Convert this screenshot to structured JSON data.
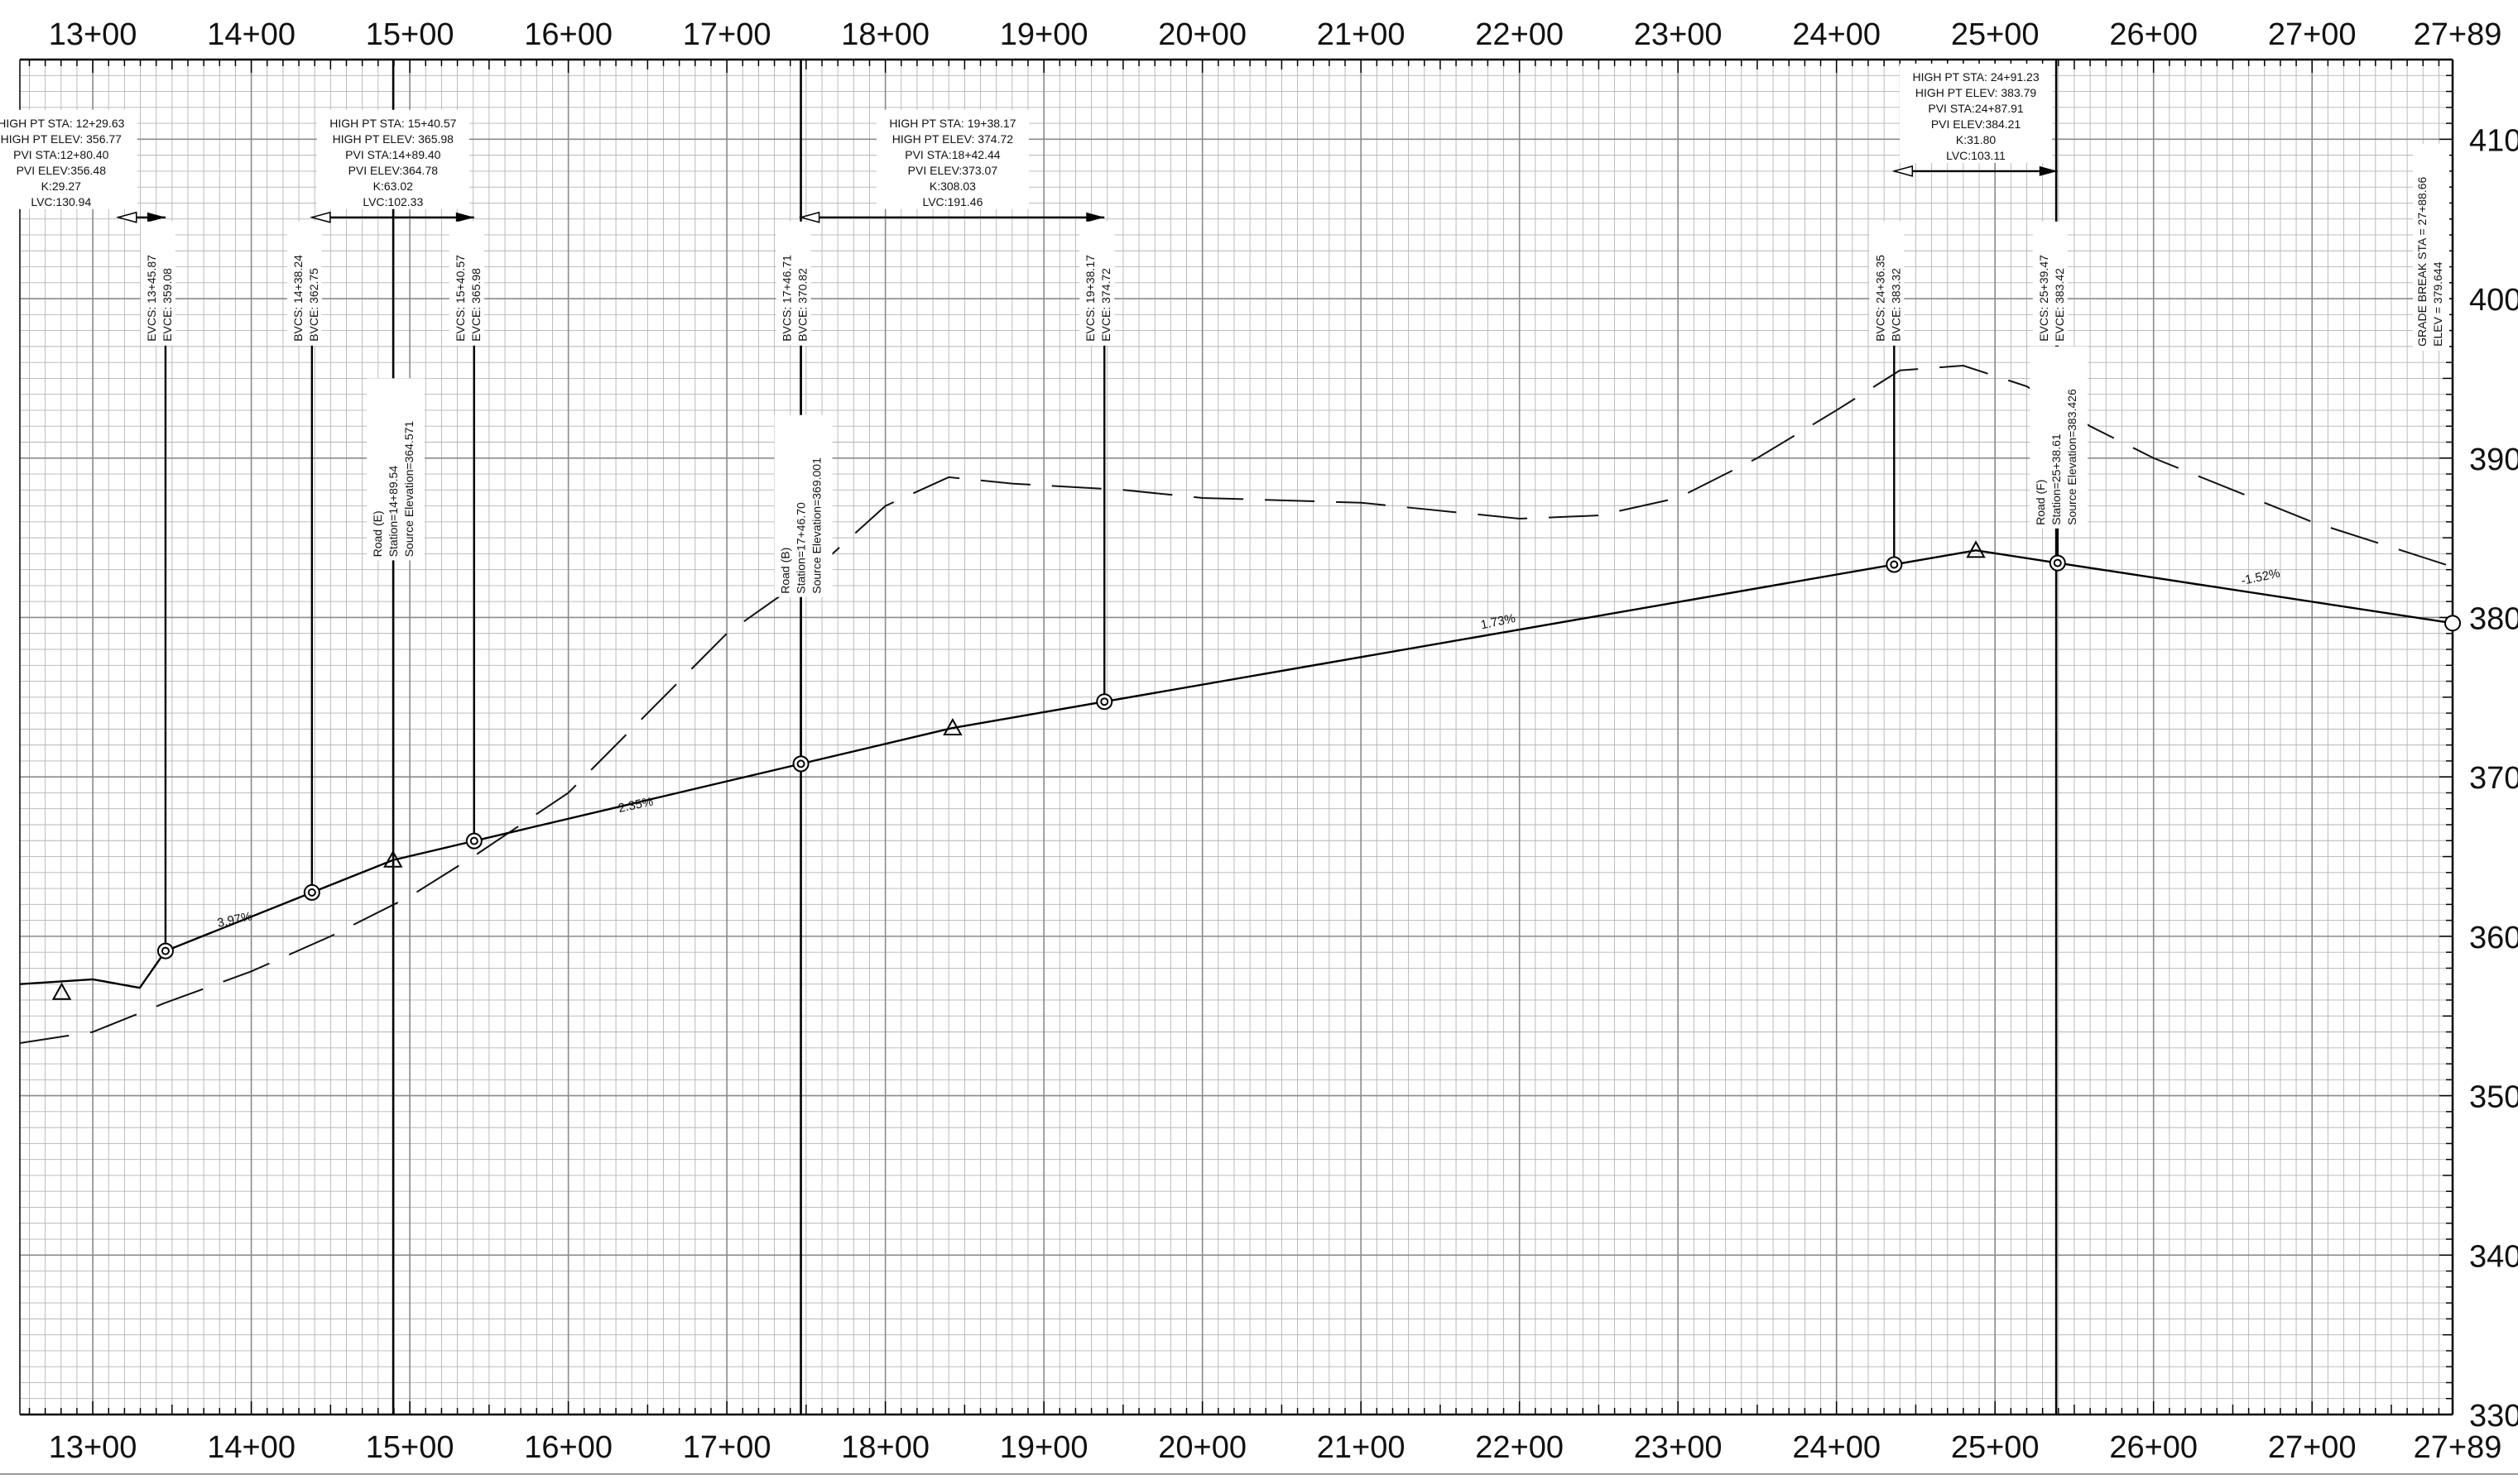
{
  "stations": [
    {
      "value": 1300,
      "label": "13+00"
    },
    {
      "value": 1400,
      "label": "14+00"
    },
    {
      "value": 1500,
      "label": "15+00"
    },
    {
      "value": 1600,
      "label": "16+00"
    },
    {
      "value": 1700,
      "label": "17+00"
    },
    {
      "value": 1800,
      "label": "18+00"
    },
    {
      "value": 1900,
      "label": "19+00"
    },
    {
      "value": 2000,
      "label": "20+00"
    },
    {
      "value": 2100,
      "label": "21+00"
    },
    {
      "value": 2200,
      "label": "22+00"
    },
    {
      "value": 2300,
      "label": "23+00"
    },
    {
      "value": 2400,
      "label": "24+00"
    },
    {
      "value": 2500,
      "label": "25+00"
    },
    {
      "value": 2600,
      "label": "26+00"
    },
    {
      "value": 2700,
      "label": "27+00"
    },
    {
      "value": 2788.66,
      "label": "27+89"
    }
  ],
  "elevations": [
    {
      "value": 410,
      "label": "410"
    },
    {
      "value": 400,
      "label": "400"
    },
    {
      "value": 390,
      "label": "390"
    },
    {
      "value": 380,
      "label": "380"
    },
    {
      "value": 370,
      "label": "370"
    },
    {
      "value": 360,
      "label": "360"
    },
    {
      "value": 350,
      "label": "350"
    },
    {
      "value": 340,
      "label": "340"
    },
    {
      "value": 330,
      "label": "330"
    }
  ],
  "chart_data": {
    "type": "line",
    "x_range": [
      1254,
      2788.66
    ],
    "y_range": [
      330,
      415
    ],
    "grid": true,
    "profile": [
      [
        1254,
        357.0
      ],
      [
        1300,
        357.3
      ],
      [
        1329.63,
        356.77
      ],
      [
        1345.87,
        359.08
      ],
      [
        1438.24,
        362.75
      ],
      [
        1489.4,
        364.78
      ],
      [
        1540.57,
        365.98
      ],
      [
        1746.71,
        370.82
      ],
      [
        1842.44,
        373.07
      ],
      [
        1938.17,
        374.72
      ],
      [
        2436.35,
        383.32
      ],
      [
        2487.91,
        384.21
      ],
      [
        2539.47,
        383.42
      ],
      [
        2788.66,
        379.644
      ]
    ],
    "existing_ground": [
      [
        1254,
        353.3
      ],
      [
        1300,
        354.0
      ],
      [
        1345,
        355.8
      ],
      [
        1400,
        357.8
      ],
      [
        1450,
        360.0
      ],
      [
        1500,
        362.5
      ],
      [
        1540,
        365.0
      ],
      [
        1600,
        369.0
      ],
      [
        1650,
        374.0
      ],
      [
        1700,
        379.0
      ],
      [
        1750,
        382.5
      ],
      [
        1800,
        387.0
      ],
      [
        1840,
        388.8
      ],
      [
        1880,
        388.4
      ],
      [
        1950,
        388.0
      ],
      [
        2000,
        387.5
      ],
      [
        2100,
        387.2
      ],
      [
        2200,
        386.2
      ],
      [
        2250,
        386.4
      ],
      [
        2300,
        387.5
      ],
      [
        2350,
        390.0
      ],
      [
        2400,
        393.0
      ],
      [
        2440,
        395.5
      ],
      [
        2480,
        395.8
      ],
      [
        2520,
        394.5
      ],
      [
        2560,
        392.0
      ],
      [
        2600,
        390.0
      ],
      [
        2650,
        388.0
      ],
      [
        2700,
        386.0
      ],
      [
        2788,
        383.2
      ]
    ],
    "grade_labels": [
      {
        "sta": 1390,
        "elev": 360.8,
        "text": "3.97%"
      },
      {
        "sta": 1643,
        "elev": 368.0,
        "text": "2.35%"
      },
      {
        "sta": 2187,
        "elev": 379.5,
        "text": "1.73%"
      },
      {
        "sta": 2668,
        "elev": 382.3,
        "text": "-1.52%"
      }
    ],
    "pvi_markers": [
      {
        "sta": 1280.4,
        "elev": 356.48
      },
      {
        "sta": 1489.4,
        "elev": 364.78
      },
      {
        "sta": 1842.44,
        "elev": 373.07
      },
      {
        "sta": 2487.91,
        "elev": 384.21
      }
    ],
    "vc_points": [
      {
        "sta": 1345.87,
        "elev": 359.08
      },
      {
        "sta": 1438.24,
        "elev": 362.75
      },
      {
        "sta": 1540.57,
        "elev": 365.98
      },
      {
        "sta": 1746.71,
        "elev": 370.82
      },
      {
        "sta": 1938.17,
        "elev": 374.72
      },
      {
        "sta": 2436.35,
        "elev": 383.32
      },
      {
        "sta": 2539.47,
        "elev": 383.42
      }
    ],
    "end_point": {
      "sta": 2788.66,
      "elev": 379.644
    },
    "curves": [
      {
        "bvc": 1316,
        "evc": 1345.87,
        "arrow_elev": 405.1,
        "box_center": 1280,
        "lines": [
          "HIGH PT STA: 12+29.63",
          "HIGH PT ELEV: 356.77",
          "PVI STA:12+80.40",
          "PVI ELEV:356.48",
          "K:29.27",
          "LVC:130.94"
        ]
      },
      {
        "bvc": 1438.24,
        "evc": 1540.57,
        "arrow_elev": 405.1,
        "box_center": 1489.4,
        "lines": [
          "HIGH PT STA: 15+40.57",
          "HIGH PT ELEV: 365.98",
          "PVI STA:14+89.40",
          "PVI ELEV:364.78",
          "K:63.02",
          "LVC:102.33"
        ]
      },
      {
        "bvc": 1746.71,
        "evc": 1938.17,
        "arrow_elev": 405.1,
        "box_center": 1842.44,
        "lines": [
          "HIGH PT STA: 19+38.17",
          "HIGH PT ELEV: 374.72",
          "PVI STA:18+42.44",
          "PVI ELEV:373.07",
          "K:308.03",
          "LVC:191.46"
        ]
      },
      {
        "bvc": 2436.35,
        "evc": 2539.47,
        "arrow_elev": 408.0,
        "box_center": 2487.91,
        "lines": [
          "HIGH PT STA: 24+91.23",
          "HIGH PT ELEV: 383.79",
          "PVI STA:24+87.91",
          "PVI ELEV:384.21",
          "K:31.80",
          "LVC:103.11"
        ]
      }
    ],
    "vc_labels": [
      {
        "sta": 1345.87,
        "lines": [
          "EVCS: 13+45.87",
          "EVCE: 359.08"
        ]
      },
      {
        "sta": 1438.24,
        "lines": [
          "BVCS: 14+38.24",
          "BVCE: 362.75"
        ]
      },
      {
        "sta": 1540.57,
        "lines": [
          "EVCS: 15+40.57",
          "EVCE: 365.98"
        ]
      },
      {
        "sta": 1746.71,
        "lines": [
          "BVCS: 17+46.71",
          "BVCE: 370.82"
        ]
      },
      {
        "sta": 1938.17,
        "lines": [
          "EVCS: 19+38.17",
          "EVCE: 374.72"
        ]
      },
      {
        "sta": 2436.35,
        "lines": [
          "BVCS: 24+36.35",
          "BVCE: 383.32"
        ]
      },
      {
        "sta": 2539.47,
        "lines": [
          "EVCS: 25+39.47",
          "EVCE: 383.42"
        ]
      }
    ],
    "crossings": [
      {
        "sta": 1489.54,
        "top_elev": 395.0,
        "lines": [
          "Road (E)",
          "Station=14+89.54",
          "Source Elevation=364.571"
        ]
      },
      {
        "sta": 1746.7,
        "top_elev": 392.7,
        "lines": [
          "Road (B)",
          "Station=17+46.70",
          "Source Elevation=369.001"
        ]
      },
      {
        "sta": 2538.61,
        "top_elev": 397.0,
        "lines": [
          "Road (F)",
          "Station=25+38.61",
          "Source Elevation=383.426"
        ]
      }
    ],
    "grade_break": {
      "sta": 2788.66,
      "lines": [
        "GRADE BREAK STA = 27+88.66",
        "ELEV = 379.644"
      ]
    }
  }
}
